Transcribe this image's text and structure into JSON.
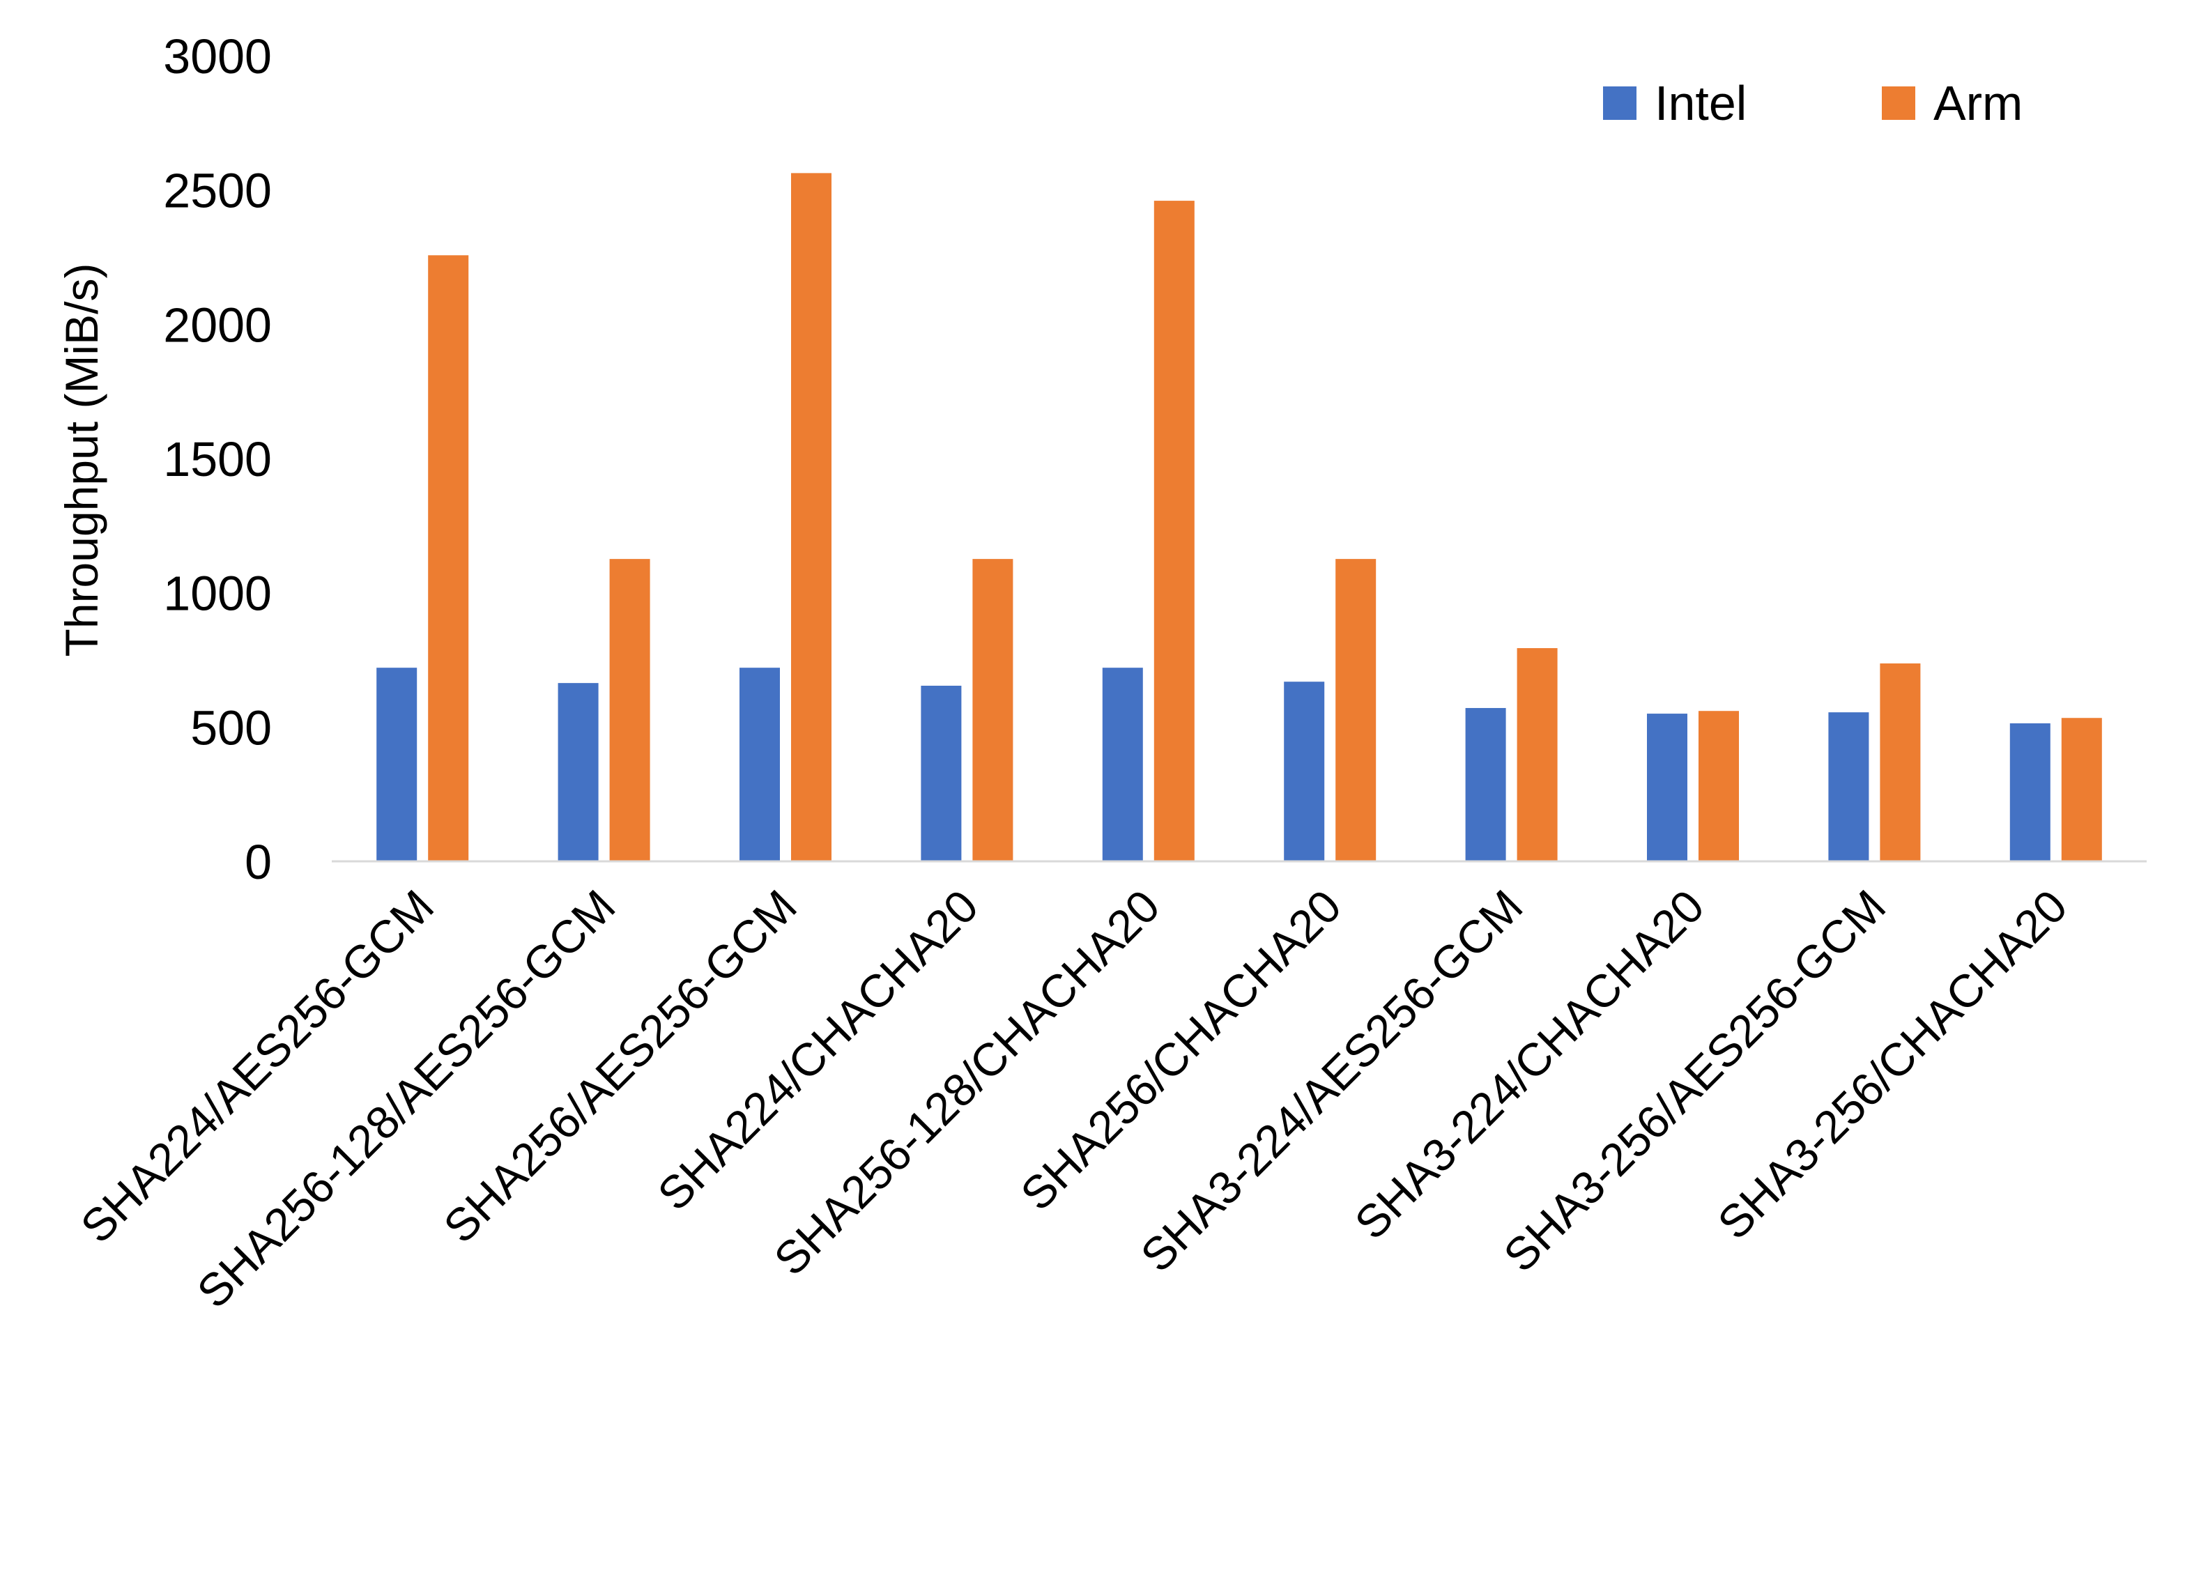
{
  "chart_data": {
    "type": "bar",
    "title": "",
    "xlabel": "",
    "ylabel": "Throughput (MiB/s)",
    "ylim": [
      0,
      3000
    ],
    "yticks": [
      0,
      500,
      1000,
      1500,
      2000,
      2500,
      3000
    ],
    "grid": false,
    "legend_placement": "top-right",
    "categories": [
      "SHA224/AES256-GCM",
      "SHA256-128/AES256-GCM",
      "SHA256/AES256-GCM",
      "SHA224/CHACHA20",
      "SHA256-128/CHACHA20",
      "SHA256/CHACHA20",
      "SHA3-224/AES256-GCM",
      "SHA3-224/CHACHA20",
      "SHA3-256/AES256-GCM",
      "SHA3-256/CHACHA20"
    ],
    "series": [
      {
        "name": "Intel",
        "color": "#4472C4",
        "values": [
          721,
          664,
          721,
          654,
          721,
          669,
          571,
          550,
          555,
          514
        ]
      },
      {
        "name": "Arm",
        "color": "#ED7D31",
        "values": [
          2257,
          1126,
          2563,
          1126,
          2460,
          1126,
          794,
          560,
          737,
          534
        ]
      }
    ]
  }
}
